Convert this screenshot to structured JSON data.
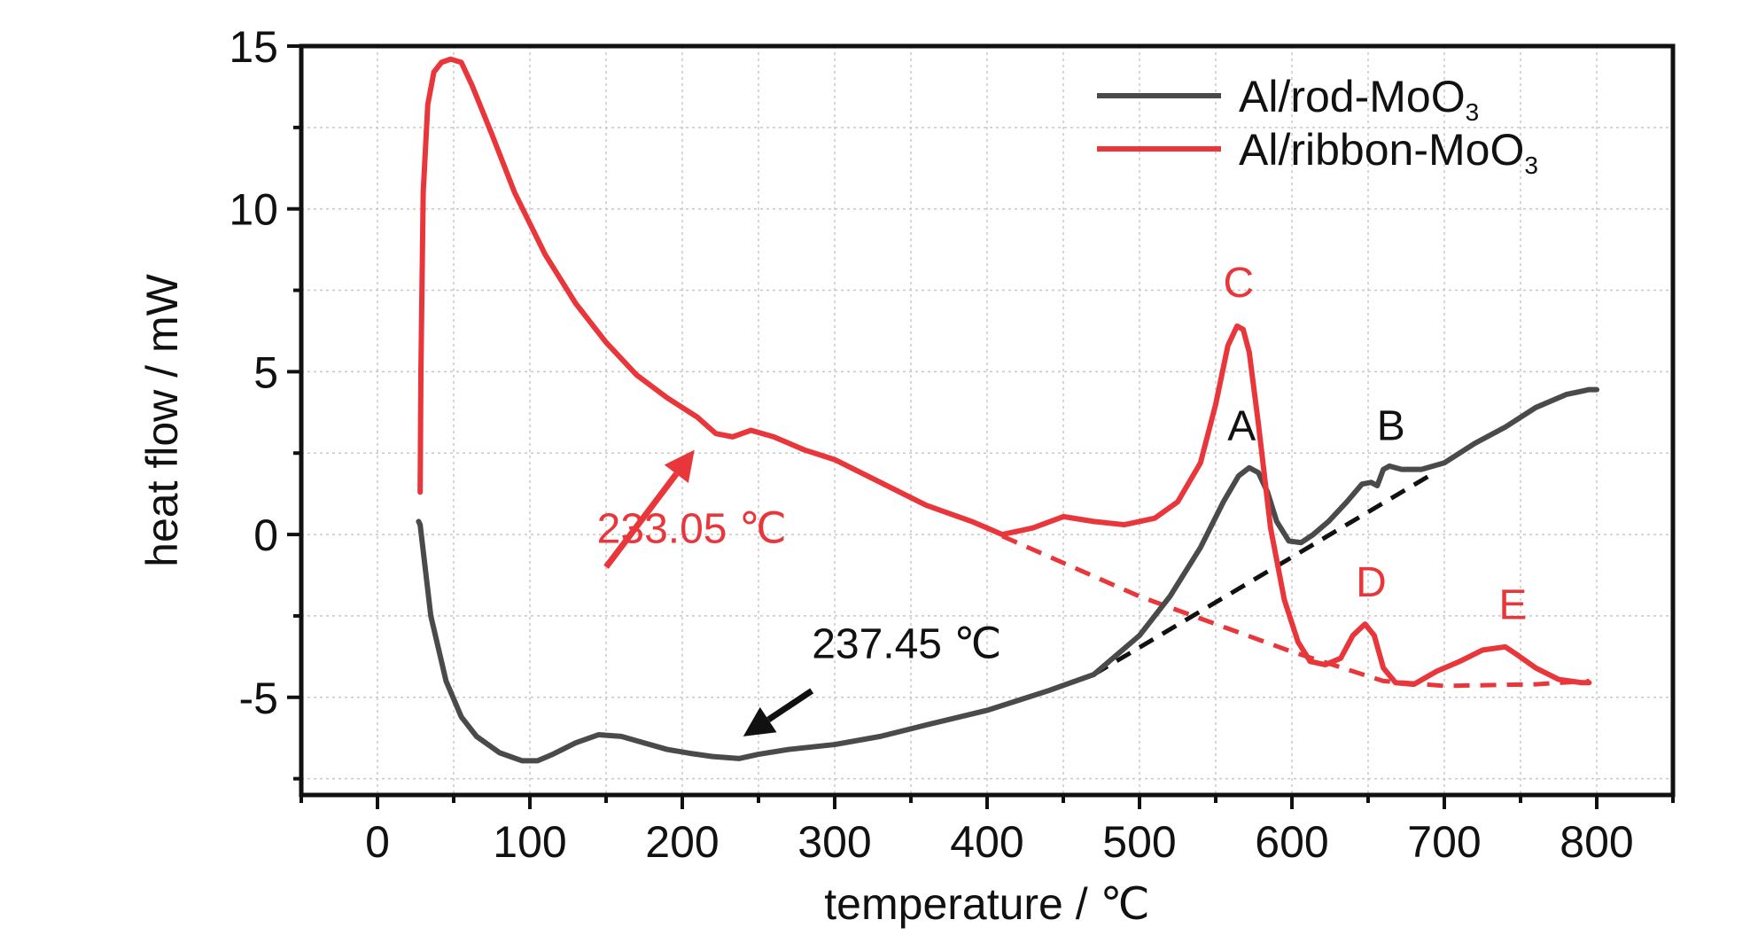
{
  "chart_data": {
    "type": "line",
    "title": "",
    "xlabel": "temperature / ℃",
    "ylabel": "heat flow / mW",
    "xlim": [
      -50,
      850
    ],
    "ylim": [
      -8,
      15
    ],
    "xticks": [
      0,
      100,
      200,
      300,
      400,
      500,
      600,
      700,
      800
    ],
    "yticks": [
      -5,
      0,
      5,
      10,
      15
    ],
    "grid": true,
    "legend_position": "top-right",
    "colors": {
      "rod": "#4a4a4a",
      "ribbon": "#e8363b",
      "baseline_black": "#111111",
      "baseline_red": "#e8363b"
    },
    "series": [
      {
        "name": "Al/rod-MoO3",
        "legend_main": "Al/rod-MoO",
        "legend_sub": "3",
        "color": "#4a4a4a",
        "x": [
          27,
          28,
          30,
          35,
          45,
          55,
          65,
          80,
          95,
          105,
          115,
          130,
          145,
          160,
          175,
          190,
          205,
          220,
          237.45,
          250,
          270,
          300,
          330,
          360,
          400,
          440,
          470,
          500,
          520,
          540,
          555,
          565,
          572,
          578,
          584,
          590,
          598,
          606,
          614,
          624,
          636,
          646,
          652,
          656,
          660,
          664,
          672,
          685,
          700,
          720,
          740,
          760,
          780,
          795,
          800
        ],
        "y": [
          0.4,
          0.3,
          -0.5,
          -2.5,
          -4.5,
          -5.6,
          -6.2,
          -6.7,
          -6.95,
          -6.95,
          -6.75,
          -6.4,
          -6.15,
          -6.2,
          -6.4,
          -6.6,
          -6.72,
          -6.82,
          -6.88,
          -6.75,
          -6.6,
          -6.45,
          -6.2,
          -5.85,
          -5.4,
          -4.8,
          -4.3,
          -3.1,
          -1.9,
          -0.4,
          1.0,
          1.8,
          2.05,
          1.9,
          1.3,
          0.4,
          -0.2,
          -0.25,
          0.0,
          0.4,
          1.0,
          1.55,
          1.6,
          1.5,
          2.0,
          2.1,
          2.0,
          2.0,
          2.2,
          2.8,
          3.3,
          3.9,
          4.3,
          4.45,
          4.45
        ]
      },
      {
        "name": "Al/ribbon-MoO3",
        "legend_main": "Al/ribbon-MoO",
        "legend_sub": "3",
        "color": "#e8363b",
        "x": [
          28,
          28.5,
          30,
          33,
          37,
          42,
          48,
          55,
          62,
          75,
          90,
          110,
          130,
          150,
          170,
          190,
          210,
          222,
          233.05,
          245,
          260,
          280,
          300,
          330,
          360,
          390,
          410,
          430,
          450,
          470,
          490,
          510,
          525,
          540,
          550,
          558,
          564,
          568,
          572,
          578,
          586,
          595,
          604,
          612,
          622,
          632,
          640,
          648,
          654,
          660,
          668,
          680,
          695,
          710,
          725,
          740,
          748,
          760,
          775,
          790,
          795
        ],
        "y": [
          1.3,
          5.0,
          10.5,
          13.2,
          14.2,
          14.5,
          14.6,
          14.5,
          13.8,
          12.3,
          10.5,
          8.6,
          7.1,
          5.9,
          4.9,
          4.2,
          3.6,
          3.1,
          3.0,
          3.2,
          3.0,
          2.6,
          2.3,
          1.6,
          0.9,
          0.4,
          0.0,
          0.2,
          0.55,
          0.4,
          0.3,
          0.5,
          1.0,
          2.2,
          4.0,
          5.8,
          6.4,
          6.3,
          5.6,
          3.4,
          0.2,
          -2.0,
          -3.3,
          -3.9,
          -4.0,
          -3.8,
          -3.1,
          -2.75,
          -3.1,
          -4.1,
          -4.55,
          -4.6,
          -4.2,
          -3.9,
          -3.55,
          -3.45,
          -3.7,
          -4.1,
          -4.45,
          -4.55,
          -4.55
        ]
      }
    ],
    "baselines": [
      {
        "color": "#111111",
        "dashed": true,
        "x": [
          470,
          690
        ],
        "y": [
          -4.3,
          1.8
        ]
      },
      {
        "color": "#e8363b",
        "dashed": true,
        "x": [
          410,
          500,
          600,
          660,
          700,
          760,
          795
        ],
        "y": [
          -0.05,
          -1.9,
          -3.6,
          -4.5,
          -4.65,
          -4.6,
          -4.5
        ]
      }
    ],
    "annotations": [
      {
        "text": "A",
        "x": 567,
        "y": 2.9,
        "color": "#111111"
      },
      {
        "text": "B",
        "x": 665,
        "y": 2.9,
        "color": "#111111"
      },
      {
        "text": "C",
        "x": 565,
        "y": 7.3,
        "color": "#e8363b"
      },
      {
        "text": "D",
        "x": 652,
        "y": -1.9,
        "color": "#e8363b"
      },
      {
        "text": "E",
        "x": 745,
        "y": -2.6,
        "color": "#e8363b"
      },
      {
        "text": "233.05 ℃",
        "x": 144,
        "y": -0.25,
        "color": "#e8363b"
      },
      {
        "text": "237.45 ℃",
        "x": 285,
        "y": -3.8,
        "color": "#111111"
      }
    ],
    "arrows": [
      {
        "color": "#e8363b",
        "from": [
          150,
          -1.0
        ],
        "to": [
          208,
          2.6
        ]
      },
      {
        "color": "#111111",
        "from": [
          285,
          -4.8
        ],
        "to": [
          240,
          -6.2
        ]
      }
    ]
  }
}
